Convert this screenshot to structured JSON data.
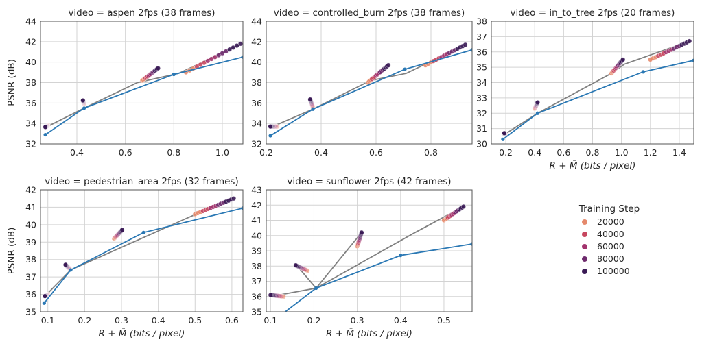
{
  "legend": {
    "title": "Training Step",
    "entries": [
      {
        "label": "20000",
        "color": "#e5896c"
      },
      {
        "label": "40000",
        "color": "#c7475f"
      },
      {
        "label": "60000",
        "color": "#a2336d"
      },
      {
        "label": "80000",
        "color": "#6e2a6d"
      },
      {
        "label": "100000",
        "color": "#3a1a55"
      }
    ]
  },
  "colors": {
    "blue_line": "#2a78b4",
    "gray_line": "#808080",
    "grid": "#d3d3d3",
    "frame": "#555555"
  },
  "chart_data": [
    {
      "type": "line",
      "title": "video = aspen 2fps (38 frames)",
      "ylabel": "PSNR (dB)",
      "xlabel": "",
      "xlim": [
        0.25,
        1.085
      ],
      "ylim": [
        32,
        44
      ],
      "xticks": [
        "0.4",
        "0.6",
        "0.8",
        "1.0"
      ],
      "xtick_values": [
        0.4,
        0.6,
        0.8,
        1.0
      ],
      "yticks": [
        "32",
        "34",
        "36",
        "38",
        "40",
        "42",
        "44"
      ],
      "ytick_values": [
        32,
        34,
        36,
        38,
        40,
        42,
        44
      ],
      "blue_line": [
        [
          0.27,
          32.9
        ],
        [
          0.43,
          35.5
        ],
        [
          0.8,
          38.8
        ],
        [
          1.085,
          40.5
        ]
      ],
      "gray_line": [
        [
          0.27,
          33.6
        ],
        [
          0.43,
          35.5
        ],
        [
          0.65,
          38.0
        ],
        [
          0.82,
          38.9
        ],
        [
          1.07,
          41.7
        ]
      ],
      "clusters": [
        {
          "x0": 0.28,
          "y0": 33.8,
          "x1": 0.27,
          "y1": 33.65
        },
        {
          "x0": 0.43,
          "y0": 35.9,
          "x1": 0.425,
          "y1": 36.25
        },
        {
          "x0": 0.67,
          "y0": 38.2,
          "x1": 0.735,
          "y1": 39.4
        },
        {
          "x0": 0.85,
          "y0": 39.0,
          "x1": 1.075,
          "y1": 41.8
        }
      ]
    },
    {
      "type": "line",
      "title": "video = controlled_burn 2fps (38 frames)",
      "ylabel": "",
      "xlabel": "",
      "xlim": [
        0.2,
        0.95
      ],
      "ylim": [
        32,
        44
      ],
      "xticks": [
        "0.2",
        "0.4",
        "0.6",
        "0.8"
      ],
      "xtick_values": [
        0.2,
        0.4,
        0.6,
        0.8
      ],
      "yticks": [
        "32",
        "34",
        "36",
        "38",
        "40",
        "42",
        "44"
      ],
      "ytick_values": [
        32,
        34,
        36,
        38,
        40,
        42,
        44
      ],
      "blue_line": [
        [
          0.215,
          32.8
        ],
        [
          0.37,
          35.4
        ],
        [
          0.705,
          39.3
        ],
        [
          0.95,
          41.2
        ]
      ],
      "gray_line": [
        [
          0.215,
          33.6
        ],
        [
          0.37,
          35.4
        ],
        [
          0.58,
          38.2
        ],
        [
          0.71,
          38.9
        ],
        [
          0.925,
          41.7
        ]
      ],
      "clusters": [
        {
          "x0": 0.24,
          "y0": 33.7,
          "x1": 0.215,
          "y1": 33.7
        },
        {
          "x0": 0.37,
          "y0": 35.6,
          "x1": 0.36,
          "y1": 36.35
        },
        {
          "x0": 0.57,
          "y0": 38.0,
          "x1": 0.645,
          "y1": 39.7
        },
        {
          "x0": 0.78,
          "y0": 39.7,
          "x1": 0.925,
          "y1": 41.7
        }
      ]
    },
    {
      "type": "line",
      "title": "video = in_to_tree 2fps (20 frames)",
      "ylabel": "",
      "xlabel": "R + M̄ (bits / pixel)",
      "xlim": [
        0.1,
        1.5
      ],
      "ylim": [
        30,
        38
      ],
      "xticks": [
        "0.2",
        "0.4",
        "0.6",
        "0.8",
        "1.0",
        "1.2",
        "1.4"
      ],
      "xtick_values": [
        0.2,
        0.4,
        0.6,
        0.8,
        1.0,
        1.2,
        1.4
      ],
      "yticks": [
        "30",
        "31",
        "32",
        "33",
        "34",
        "35",
        "36",
        "37",
        "38"
      ],
      "ytick_values": [
        30,
        31,
        32,
        33,
        34,
        35,
        36,
        37,
        38
      ],
      "blue_line": [
        [
          0.18,
          30.3
        ],
        [
          0.42,
          32.0
        ],
        [
          1.15,
          34.7
        ],
        [
          1.5,
          35.45
        ]
      ],
      "gray_line": [
        [
          0.18,
          30.55
        ],
        [
          0.42,
          32.0
        ],
        [
          0.93,
          34.6
        ],
        [
          1.02,
          35.2
        ],
        [
          1.47,
          36.7
        ]
      ],
      "clusters": [
        {
          "x0": 0.2,
          "y0": 30.6,
          "x1": 0.19,
          "y1": 30.7
        },
        {
          "x0": 0.4,
          "y0": 32.3,
          "x1": 0.42,
          "y1": 32.7
        },
        {
          "x0": 0.93,
          "y0": 34.6,
          "x1": 1.01,
          "y1": 35.5
        },
        {
          "x0": 1.2,
          "y0": 35.5,
          "x1": 1.47,
          "y1": 36.7
        }
      ]
    },
    {
      "type": "line",
      "title": "video = pedestrian_area 2fps (32 frames)",
      "ylabel": "PSNR (dB)",
      "xlabel": "R + M̄ (bits / pixel)",
      "xlim": [
        0.08,
        0.63
      ],
      "ylim": [
        35,
        42
      ],
      "xticks": [
        "0.1",
        "0.2",
        "0.3",
        "0.4",
        "0.5",
        "0.6"
      ],
      "xtick_values": [
        0.1,
        0.2,
        0.3,
        0.4,
        0.5,
        0.6
      ],
      "yticks": [
        "35",
        "36",
        "37",
        "38",
        "39",
        "40",
        "41",
        "42"
      ],
      "ytick_values": [
        35,
        36,
        37,
        38,
        39,
        40,
        41,
        42
      ],
      "blue_line": [
        [
          0.09,
          35.5
        ],
        [
          0.162,
          37.4
        ],
        [
          0.36,
          39.55
        ],
        [
          0.63,
          40.95
        ]
      ],
      "gray_line": [
        [
          0.09,
          35.85
        ],
        [
          0.162,
          37.4
        ],
        [
          0.47,
          40.3
        ],
        [
          0.6,
          41.5
        ]
      ],
      "clusters": [
        {
          "x0": 0.1,
          "y0": 36.0,
          "x1": 0.092,
          "y1": 35.9
        },
        {
          "x0": 0.16,
          "y0": 37.45,
          "x1": 0.148,
          "y1": 37.7
        },
        {
          "x0": 0.28,
          "y0": 39.2,
          "x1": 0.302,
          "y1": 39.7
        },
        {
          "x0": 0.5,
          "y0": 40.6,
          "x1": 0.605,
          "y1": 41.5
        }
      ]
    },
    {
      "type": "line",
      "title": "video = sunflower 2fps (42 frames)",
      "ylabel": "",
      "xlabel": "R + M̄ (bits / pixel)",
      "xlim": [
        0.09,
        0.565
      ],
      "ylim": [
        35,
        43
      ],
      "xticks": [
        "0.1",
        "0.2",
        "0.3",
        "0.4",
        "0.5"
      ],
      "xtick_values": [
        0.1,
        0.2,
        0.3,
        0.4,
        0.5
      ],
      "yticks": [
        "35",
        "36",
        "37",
        "38",
        "39",
        "40",
        "41",
        "42",
        "43"
      ],
      "ytick_values": [
        35,
        36,
        37,
        38,
        39,
        40,
        41,
        42,
        43
      ],
      "blue_line": [
        [
          0.12,
          34.7
        ],
        [
          0.205,
          36.55
        ],
        [
          0.4,
          38.7
        ],
        [
          0.565,
          39.45
        ]
      ],
      "gray_line": [
        [
          0.1,
          36.0
        ],
        [
          0.205,
          36.55
        ],
        [
          0.16,
          38.05
        ],
        [
          0.205,
          36.55
        ],
        [
          0.31,
          40.2
        ],
        [
          0.205,
          36.55
        ],
        [
          0.43,
          40.15
        ],
        [
          0.545,
          41.9
        ]
      ],
      "clusters": [
        {
          "x0": 0.13,
          "y0": 36.0,
          "x1": 0.1,
          "y1": 36.1
        },
        {
          "x0": 0.185,
          "y0": 37.7,
          "x1": 0.158,
          "y1": 38.05
        },
        {
          "x0": 0.3,
          "y0": 39.3,
          "x1": 0.31,
          "y1": 40.2
        },
        {
          "x0": 0.5,
          "y0": 41.0,
          "x1": 0.545,
          "y1": 41.9
        }
      ]
    }
  ]
}
